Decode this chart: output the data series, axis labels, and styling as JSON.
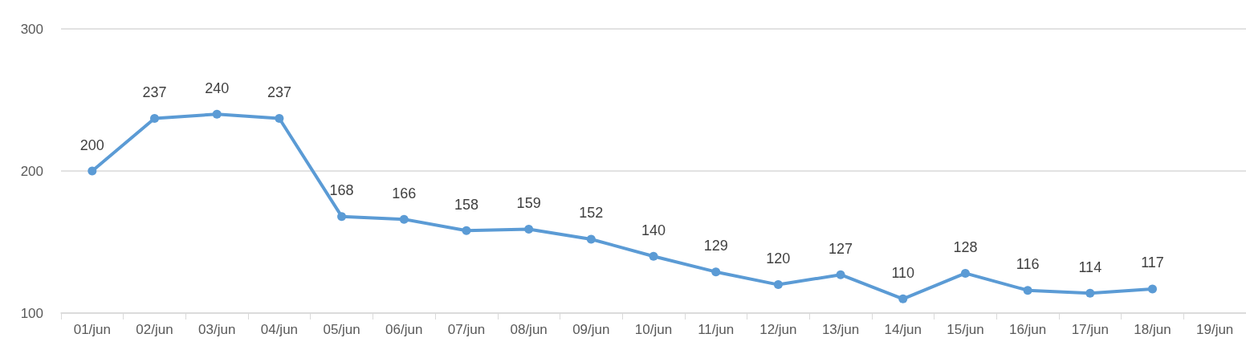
{
  "chart_data": {
    "type": "line",
    "categories": [
      "01/jun",
      "02/jun",
      "03/jun",
      "04/jun",
      "05/jun",
      "06/jun",
      "07/jun",
      "08/jun",
      "09/jun",
      "10/jun",
      "11/jun",
      "12/jun",
      "13/jun",
      "14/jun",
      "15/jun",
      "16/jun",
      "17/jun",
      "18/jun",
      "19/jun"
    ],
    "series": [
      {
        "color": "#5b9bd5",
        "values": [
          200,
          237,
          240,
          237,
          168,
          166,
          158,
          159,
          152,
          140,
          129,
          120,
          127,
          110,
          128,
          116,
          114,
          117,
          null
        ]
      }
    ],
    "ylim": [
      100,
      300
    ],
    "yticks": [
      100,
      200,
      300
    ],
    "grid": "y",
    "data_labels": true,
    "marker": "circle",
    "line_style": "solid"
  }
}
